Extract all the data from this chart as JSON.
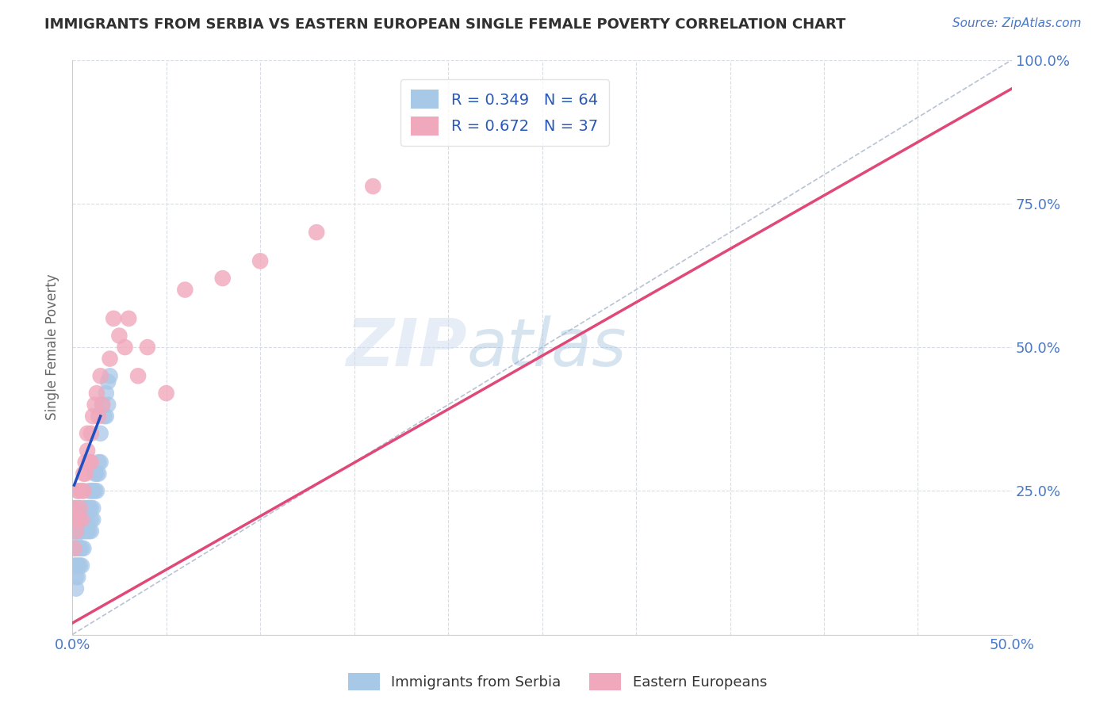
{
  "title": "IMMIGRANTS FROM SERBIA VS EASTERN EUROPEAN SINGLE FEMALE POVERTY CORRELATION CHART",
  "source": "Source: ZipAtlas.com",
  "ylabel": "Single Female Poverty",
  "xlim": [
    0.0,
    0.5
  ],
  "ylim": [
    0.0,
    1.0
  ],
  "xticks": [
    0.0,
    0.05,
    0.1,
    0.15,
    0.2,
    0.25,
    0.3,
    0.35,
    0.4,
    0.45,
    0.5
  ],
  "yticks": [
    0.0,
    0.25,
    0.5,
    0.75,
    1.0
  ],
  "xtick_labels": [
    "0.0%",
    "",
    "",
    "",
    "",
    "",
    "",
    "",
    "",
    "",
    "50.0%"
  ],
  "ytick_labels_right": [
    "",
    "25.0%",
    "50.0%",
    "75.0%",
    "100.0%"
  ],
  "R_serbia": 0.349,
  "N_serbia": 64,
  "R_eastern": 0.672,
  "N_eastern": 37,
  "serbia_color": "#a8c8e8",
  "eastern_color": "#f0a8bc",
  "serbia_line_color": "#2050c0",
  "eastern_line_color": "#e04878",
  "ref_line_color": "#b0bcd0",
  "legend_text_color": "#2858b8",
  "title_color": "#303030",
  "axis_tick_color": "#4878c8",
  "grid_color": "#d8dce8",
  "background_color": "#ffffff",
  "watermark": "ZIPatlas",
  "serbia_x": [
    0.0005,
    0.001,
    0.001,
    0.001,
    0.001,
    0.0015,
    0.0015,
    0.002,
    0.002,
    0.002,
    0.002,
    0.002,
    0.002,
    0.003,
    0.003,
    0.003,
    0.003,
    0.003,
    0.003,
    0.003,
    0.004,
    0.004,
    0.004,
    0.004,
    0.004,
    0.005,
    0.005,
    0.005,
    0.005,
    0.006,
    0.006,
    0.006,
    0.006,
    0.007,
    0.007,
    0.007,
    0.008,
    0.008,
    0.008,
    0.009,
    0.009,
    0.009,
    0.01,
    0.01,
    0.01,
    0.01,
    0.011,
    0.011,
    0.011,
    0.012,
    0.012,
    0.013,
    0.013,
    0.014,
    0.014,
    0.015,
    0.015,
    0.016,
    0.017,
    0.018,
    0.018,
    0.019,
    0.019,
    0.02
  ],
  "serbia_y": [
    0.2,
    0.22,
    0.18,
    0.15,
    0.12,
    0.2,
    0.16,
    0.22,
    0.18,
    0.15,
    0.12,
    0.1,
    0.08,
    0.25,
    0.22,
    0.2,
    0.18,
    0.15,
    0.12,
    0.1,
    0.22,
    0.2,
    0.18,
    0.15,
    0.12,
    0.2,
    0.18,
    0.15,
    0.12,
    0.22,
    0.2,
    0.18,
    0.15,
    0.22,
    0.2,
    0.18,
    0.22,
    0.2,
    0.18,
    0.25,
    0.22,
    0.18,
    0.25,
    0.22,
    0.2,
    0.18,
    0.25,
    0.22,
    0.2,
    0.28,
    0.25,
    0.28,
    0.25,
    0.3,
    0.28,
    0.35,
    0.3,
    0.4,
    0.38,
    0.42,
    0.38,
    0.44,
    0.4,
    0.45
  ],
  "eastern_x": [
    0.001,
    0.001,
    0.002,
    0.002,
    0.003,
    0.003,
    0.004,
    0.005,
    0.005,
    0.006,
    0.006,
    0.007,
    0.007,
    0.008,
    0.008,
    0.009,
    0.01,
    0.01,
    0.011,
    0.012,
    0.013,
    0.014,
    0.015,
    0.016,
    0.02,
    0.022,
    0.025,
    0.028,
    0.03,
    0.035,
    0.04,
    0.05,
    0.06,
    0.08,
    0.1,
    0.13,
    0.16
  ],
  "eastern_y": [
    0.22,
    0.15,
    0.2,
    0.18,
    0.25,
    0.2,
    0.22,
    0.25,
    0.2,
    0.28,
    0.25,
    0.3,
    0.28,
    0.35,
    0.32,
    0.3,
    0.35,
    0.3,
    0.38,
    0.4,
    0.42,
    0.38,
    0.45,
    0.4,
    0.48,
    0.55,
    0.52,
    0.5,
    0.55,
    0.45,
    0.5,
    0.42,
    0.6,
    0.62,
    0.65,
    0.7,
    0.78
  ],
  "eastern_line_x": [
    0.0,
    0.5
  ],
  "eastern_line_y": [
    0.02,
    0.95
  ],
  "serbia_line_x": [
    0.001,
    0.015
  ],
  "serbia_line_y": [
    0.26,
    0.38
  ]
}
